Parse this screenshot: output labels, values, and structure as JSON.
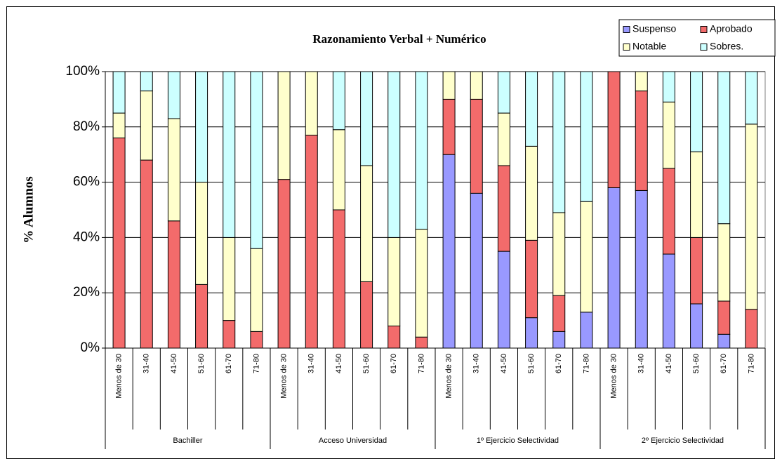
{
  "chart_data": {
    "type": "stacked_bar_percent",
    "title": "Razonamiento Verbal + Numérico",
    "y_label": "% Alumnos",
    "groups": [
      "Bachiller",
      "Acceso Universidad",
      "1º Ejercicio Selectividad",
      "2º Ejercicio Selectividad"
    ],
    "categories": [
      "Menos de 30",
      "31-40",
      "41-50",
      "51-60",
      "61-70",
      "71-80",
      "Menos de 30",
      "31-40",
      "41-50",
      "51-60",
      "61-70",
      "71-80",
      "Menos de 30",
      "31-40",
      "41-50",
      "51-60",
      "61-70",
      "71-80",
      "Menos de 30",
      "31-40",
      "41-50",
      "51-60",
      "61-70",
      "71-80"
    ],
    "series": [
      {
        "name": "Suspenso",
        "color": "#9999ff",
        "values": [
          0,
          0,
          0,
          0,
          0,
          0,
          0,
          0,
          0,
          0,
          0,
          0,
          70,
          56,
          35,
          11,
          6,
          13,
          58,
          57,
          34,
          16,
          5,
          0
        ]
      },
      {
        "name": "Aprobado",
        "color": "#f36b6b",
        "values": [
          76,
          68,
          46,
          23,
          10,
          6,
          61,
          77,
          50,
          24,
          8,
          4,
          20,
          34,
          31,
          28,
          13,
          0,
          42,
          36,
          31,
          24,
          12,
          14
        ]
      },
      {
        "name": "Notable",
        "color": "#ffffcc",
        "values": [
          9,
          25,
          37,
          37,
          30,
          30,
          39,
          23,
          29,
          42,
          32,
          39,
          10,
          10,
          19,
          34,
          30,
          40,
          0,
          7,
          24,
          31,
          28,
          67
        ]
      },
      {
        "name": "Sobres.",
        "color": "#ccffff",
        "values": [
          15,
          7,
          17,
          40,
          60,
          64,
          0,
          0,
          21,
          34,
          60,
          57,
          0,
          0,
          15,
          27,
          51,
          47,
          0,
          0,
          11,
          29,
          55,
          19
        ]
      }
    ],
    "ylim": [
      0,
      100
    ],
    "yticks": [
      {
        "value": 0,
        "label": "0%"
      },
      {
        "value": 20,
        "label": "20%"
      },
      {
        "value": 40,
        "label": "40%"
      },
      {
        "value": 60,
        "label": "60%"
      },
      {
        "value": 80,
        "label": "80%"
      },
      {
        "value": 100,
        "label": "100%"
      }
    ],
    "grid": true,
    "legend": "top-right"
  }
}
